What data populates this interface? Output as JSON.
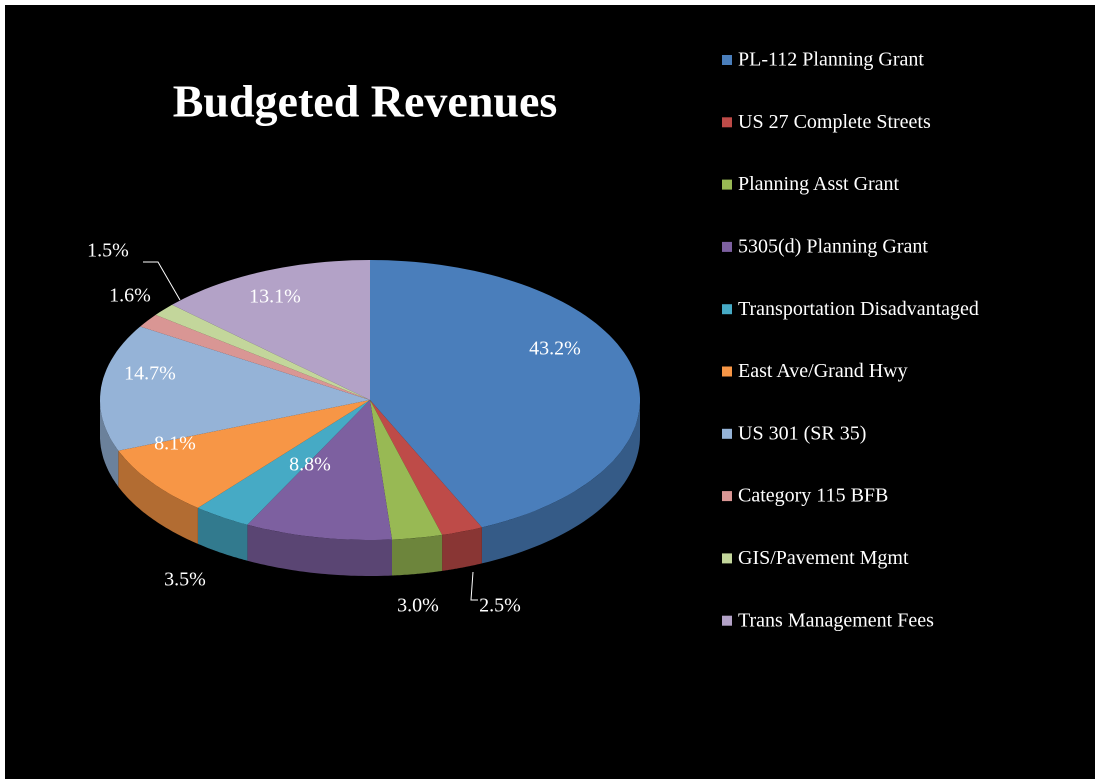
{
  "chart_data": {
    "type": "pie",
    "title": "Budgeted Revenues",
    "categories": [
      "PL-112 Planning Grant",
      "US 27 Complete Streets",
      "Planning Asst Grant",
      "5305(d) Planning Grant",
      "Transportation Disadvantaged",
      "East Ave/Grand Hwy",
      "US 301 (SR 35)",
      "Category 115 BFB",
      "GIS/Pavement Mgmt",
      "Trans Management Fees"
    ],
    "values": [
      43.2,
      2.5,
      3.0,
      8.8,
      3.5,
      8.1,
      14.7,
      1.6,
      1.5,
      13.1
    ],
    "value_labels": [
      "43.2%",
      "2.5%",
      "3.0%",
      "8.8%",
      "3.5%",
      "8.1%",
      "14.7%",
      "1.6%",
      "1.5%",
      "13.1%"
    ],
    "colors": [
      "#4a7ebb",
      "#be4b48",
      "#98b954",
      "#7d60a0",
      "#46aac5",
      "#f79646",
      "#95b3d7",
      "#d99694",
      "#c3d69b",
      "#b3a2c7"
    ],
    "legend": "right"
  }
}
